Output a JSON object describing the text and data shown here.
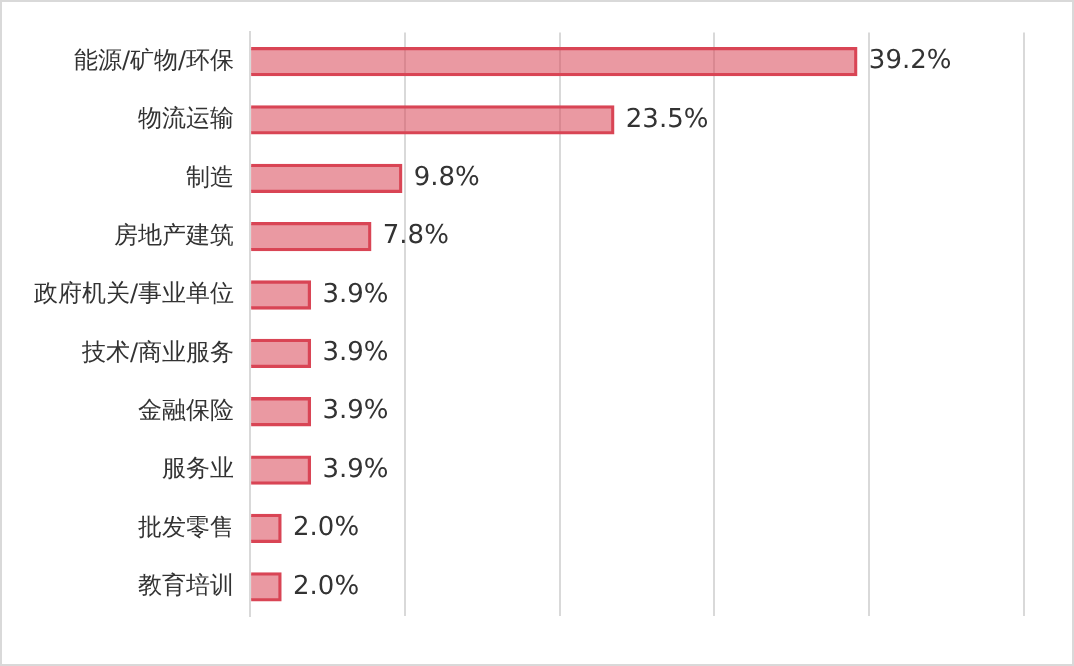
{
  "chart_data": {
    "type": "bar",
    "orientation": "horizontal",
    "categories": [
      "能源/矿物/环保",
      "物流运输",
      "制造",
      "房地产建筑",
      "政府机关/事业单位",
      "技术/商业服务",
      "金融保险",
      "服务业",
      "批发零售",
      "教育培训"
    ],
    "values": [
      39.2,
      23.5,
      9.8,
      7.8,
      3.9,
      3.9,
      3.9,
      3.9,
      2.0,
      2.0
    ],
    "value_labels": [
      "39.2%",
      "23.5%",
      "9.8%",
      "7.8%",
      "3.9%",
      "3.9%",
      "3.9%",
      "3.9%",
      "2.0%",
      "2.0%"
    ],
    "color": "#d94555",
    "xlim": [
      0,
      50
    ],
    "xticks": [
      {
        "value": 0,
        "label": null
      },
      {
        "value": 10,
        "label": null
      },
      {
        "value": 20,
        "label": null
      },
      {
        "value": 30,
        "label": null
      },
      {
        "value": 40,
        "label": null
      },
      {
        "value": 50,
        "label": null
      }
    ],
    "grid": "x",
    "tick_labels": "y"
  }
}
